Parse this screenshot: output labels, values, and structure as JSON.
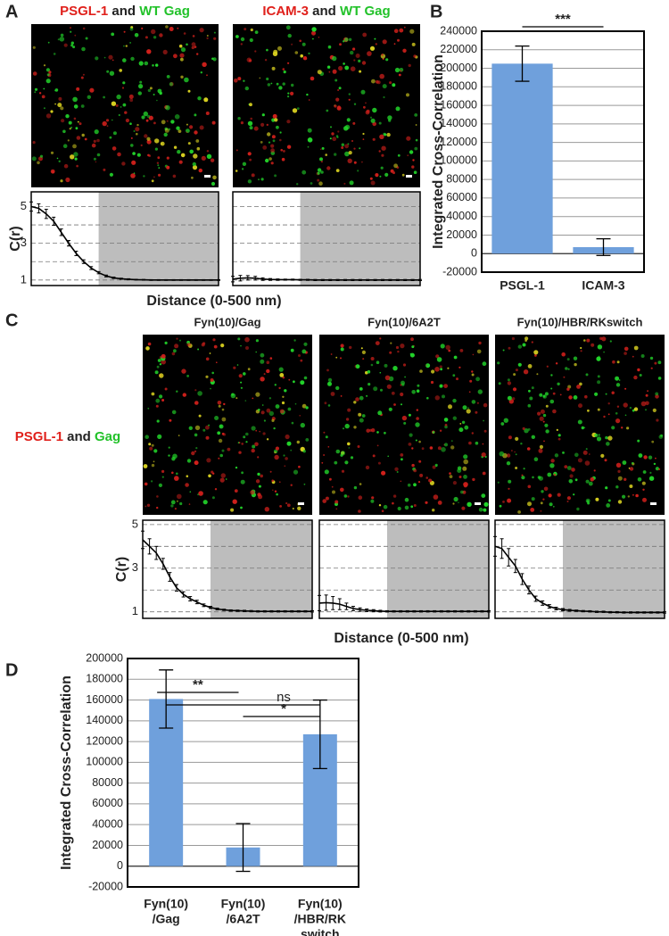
{
  "panel_labels": [
    "A",
    "B",
    "C",
    "D"
  ],
  "panel_a": {
    "image_titles": [
      [
        "PSGL-1",
        "and",
        "WT Gag"
      ],
      [
        "ICAM-3",
        "and",
        "WT Gag"
      ]
    ],
    "xlabel": "Distance (0-500 nm)"
  },
  "panel_c": {
    "row_label": [
      "PSGL-1",
      "and",
      "Gag"
    ],
    "image_titles": [
      "Fyn(10)/Gag",
      "Fyn(10)/6A2T",
      "Fyn(10)/HBR/RKswitch"
    ],
    "xlabel": "Distance (0-500 nm)"
  },
  "chart_data": [
    {
      "type": "line",
      "ylabel": "C(r)",
      "color": "#000000",
      "x": [
        0,
        20,
        40,
        60,
        80,
        100,
        120,
        140,
        160,
        180,
        200,
        220,
        240,
        260,
        280,
        300,
        320,
        340,
        360,
        380,
        400,
        420,
        440,
        460,
        480,
        500
      ],
      "values": [
        5.0,
        4.9,
        4.6,
        4.2,
        3.6,
        3.0,
        2.45,
        2.0,
        1.65,
        1.4,
        1.22,
        1.12,
        1.07,
        1.04,
        1.02,
        1.01,
        1.0,
        1.0,
        1.0,
        1.0,
        1.0,
        1.0,
        1.0,
        1.0,
        1.0,
        1.0
      ],
      "errors": [
        0.25,
        0.25,
        0.25,
        0.22,
        0.18,
        0.15,
        0.12,
        0.1,
        0.08,
        0.06,
        0.05,
        0.04,
        0.03,
        0.03,
        0.02,
        0.02,
        0.02,
        0.02,
        0.02,
        0.02,
        0.02,
        0.02,
        0.02,
        0.02,
        0.02,
        0.02
      ],
      "xlim": [
        0,
        500
      ],
      "ylim": [
        0.7,
        5.8
      ],
      "yticks": [
        1,
        3,
        5
      ],
      "ygrid": [
        1,
        2,
        3,
        4,
        5
      ],
      "shade_start": 180
    },
    {
      "type": "line",
      "color": "#000000",
      "x": [
        0,
        20,
        40,
        60,
        80,
        100,
        120,
        140,
        160,
        180,
        200,
        220,
        240,
        260,
        280,
        300,
        320,
        340,
        360,
        380,
        400,
        420,
        440,
        460,
        480,
        500
      ],
      "values": [
        1.05,
        1.1,
        1.12,
        1.1,
        1.05,
        1.03,
        1.02,
        1.02,
        1.02,
        1.01,
        1.01,
        1.0,
        1.0,
        1.0,
        1.0,
        1.0,
        1.0,
        1.0,
        1.0,
        1.0,
        1.0,
        1.0,
        1.0,
        1.0,
        1.0,
        1.0
      ],
      "errors": [
        0.15,
        0.15,
        0.12,
        0.1,
        0.07,
        0.05,
        0.04,
        0.03,
        0.03,
        0.03,
        0.03,
        0.03,
        0.03,
        0.03,
        0.03,
        0.03,
        0.03,
        0.03,
        0.03,
        0.03,
        0.03,
        0.03,
        0.03,
        0.03,
        0.03,
        0.03
      ],
      "xlim": [
        0,
        500
      ],
      "ylim": [
        0.7,
        5.8
      ],
      "ygrid": [
        1,
        2,
        3,
        4,
        5
      ],
      "shade_start": 180
    },
    {
      "type": "bar",
      "ylabel": "Integrated Cross-Correlation",
      "color": "#6fa0dc",
      "categories": [
        "PSGL-1",
        "ICAM-3"
      ],
      "values": [
        205000,
        7000
      ],
      "errors": [
        19000,
        9000
      ],
      "ylim": [
        -20000,
        240000
      ],
      "yticks": [
        -20000,
        0,
        20000,
        40000,
        60000,
        80000,
        100000,
        120000,
        140000,
        160000,
        180000,
        200000,
        220000,
        240000
      ],
      "annotations": [
        "***"
      ]
    },
    {
      "type": "line",
      "ylabel": "C(r)",
      "color": "#000000",
      "x": [
        0,
        20,
        40,
        60,
        80,
        100,
        120,
        140,
        160,
        180,
        200,
        220,
        240,
        260,
        280,
        300,
        320,
        340,
        360,
        380,
        400,
        420,
        440,
        460,
        480,
        500
      ],
      "values": [
        4.3,
        4.0,
        3.7,
        3.2,
        2.6,
        2.1,
        1.8,
        1.6,
        1.45,
        1.3,
        1.2,
        1.13,
        1.09,
        1.06,
        1.05,
        1.04,
        1.03,
        1.02,
        1.02,
        1.02,
        1.02,
        1.02,
        1.02,
        1.02,
        1.02,
        1.02
      ],
      "errors": [
        0.4,
        0.35,
        0.3,
        0.25,
        0.2,
        0.15,
        0.12,
        0.1,
        0.08,
        0.06,
        0.05,
        0.04,
        0.03,
        0.03,
        0.03,
        0.03,
        0.03,
        0.03,
        0.03,
        0.03,
        0.03,
        0.03,
        0.03,
        0.03,
        0.03,
        0.03
      ],
      "xlim": [
        0,
        500
      ],
      "ylim": [
        0.7,
        5.2
      ],
      "yticks": [
        1,
        3,
        5
      ],
      "ygrid": [
        1,
        2,
        3,
        4,
        5
      ],
      "shade_start": 200
    },
    {
      "type": "line",
      "color": "#000000",
      "x": [
        0,
        20,
        40,
        60,
        80,
        100,
        120,
        140,
        160,
        180,
        200,
        220,
        240,
        260,
        280,
        300,
        320,
        340,
        360,
        380,
        400,
        420,
        440,
        460,
        480,
        500
      ],
      "values": [
        1.4,
        1.42,
        1.4,
        1.35,
        1.25,
        1.15,
        1.1,
        1.07,
        1.05,
        1.03,
        1.02,
        1.02,
        1.02,
        1.02,
        1.02,
        1.02,
        1.02,
        1.02,
        1.02,
        1.02,
        1.02,
        1.02,
        1.02,
        1.02,
        1.02,
        1.02
      ],
      "errors": [
        0.35,
        0.35,
        0.3,
        0.25,
        0.15,
        0.1,
        0.08,
        0.06,
        0.05,
        0.04,
        0.03,
        0.03,
        0.03,
        0.03,
        0.03,
        0.03,
        0.03,
        0.03,
        0.03,
        0.03,
        0.03,
        0.03,
        0.03,
        0.03,
        0.03,
        0.03
      ],
      "xlim": [
        0,
        500
      ],
      "ylim": [
        0.7,
        5.2
      ],
      "ygrid": [
        1,
        2,
        3,
        4,
        5
      ],
      "shade_start": 200
    },
    {
      "type": "line",
      "color": "#000000",
      "x": [
        0,
        20,
        40,
        60,
        80,
        100,
        120,
        140,
        160,
        180,
        200,
        220,
        240,
        260,
        280,
        300,
        320,
        340,
        360,
        380,
        400,
        420,
        440,
        460,
        480,
        500
      ],
      "values": [
        4.0,
        3.9,
        3.5,
        3.1,
        2.5,
        2.0,
        1.6,
        1.4,
        1.25,
        1.15,
        1.1,
        1.07,
        1.05,
        1.03,
        1.02,
        1.0,
        1.0,
        0.98,
        0.98,
        0.97,
        0.97,
        0.97,
        0.97,
        0.97,
        0.97,
        0.97
      ],
      "errors": [
        0.45,
        0.45,
        0.4,
        0.3,
        0.25,
        0.18,
        0.12,
        0.1,
        0.08,
        0.06,
        0.05,
        0.04,
        0.03,
        0.03,
        0.03,
        0.03,
        0.03,
        0.03,
        0.03,
        0.03,
        0.03,
        0.03,
        0.03,
        0.03,
        0.03,
        0.03
      ],
      "xlim": [
        0,
        500
      ],
      "ylim": [
        0.7,
        5.2
      ],
      "ygrid": [
        1,
        2,
        3,
        4,
        5
      ],
      "shade_start": 200
    },
    {
      "type": "bar",
      "ylabel": "Integrated Cross-Correlation",
      "color": "#6fa0dc",
      "categories": [
        [
          "Fyn(10)",
          "/Gag"
        ],
        [
          "Fyn(10)",
          "/6A2T"
        ],
        [
          "Fyn(10)",
          "/HBR/RK",
          "switch"
        ]
      ],
      "values": [
        161000,
        18000,
        127000
      ],
      "errors": [
        28000,
        23000,
        33000
      ],
      "ylim": [
        -20000,
        200000
      ],
      "yticks": [
        -20000,
        0,
        20000,
        40000,
        60000,
        80000,
        100000,
        120000,
        140000,
        160000,
        180000,
        200000
      ],
      "annotations": [
        "**",
        "ns",
        "*"
      ]
    }
  ]
}
